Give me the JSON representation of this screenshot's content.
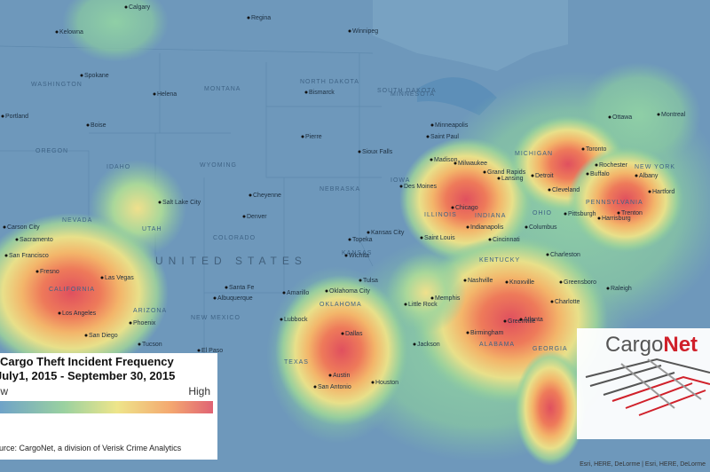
{
  "map": {
    "title": "Cargo Theft  Incident Frequency",
    "subtitle": "July1, 2015 - September 30, 2015",
    "legend": {
      "low": "Low",
      "high": "High"
    },
    "source": "Source: CargoNet, a division of Verisk Crime Analytics",
    "logo": {
      "first": "Cargo",
      "second": "Net"
    },
    "attribution": "Esri, HERE, DeLorme | Esri, HERE, DeLorme",
    "country": "UNITED STATES",
    "states": [
      "MONTANA",
      "NORTH DAKOTA",
      "SOUTH DAKOTA",
      "MINNESOTA",
      "WYOMING",
      "NEBRASKA",
      "IOWA",
      "COLORADO",
      "KANSAS",
      "UTAH",
      "NEVADA",
      "CALIFORNIA",
      "ARIZONA",
      "NEW MEXICO",
      "TEXAS",
      "OKLAHOMA",
      "ILLINOIS",
      "INDIANA",
      "OHIO",
      "MICHIGAN",
      "KENTUCKY",
      "ALABAMA",
      "GEORGIA",
      "NEW YORK",
      "PENNSYLVANIA",
      "OREGON",
      "IDAHO",
      "WASHINGTON"
    ],
    "cities": [
      "Calgary",
      "Regina",
      "Winnipeg",
      "Kelowna",
      "Spokane",
      "Portland",
      "Boise",
      "Helena",
      "Bismarck",
      "Minneapolis",
      "Saint Paul",
      "Pierre",
      "Sioux Falls",
      "Cheyenne",
      "Salt Lake City",
      "Denver",
      "Des Moines",
      "Chicago",
      "Milwaukee",
      "Madison",
      "Grand Rapids",
      "Lansing",
      "Detroit",
      "Toronto",
      "Ottawa",
      "Montreal",
      "Rochester",
      "Buffalo",
      "Cleveland",
      "Pittsburgh",
      "Indianapolis",
      "Columbus",
      "Cincinnati",
      "Saint Louis",
      "Kansas City",
      "Topeka",
      "Wichita",
      "Charleston",
      "Tulsa",
      "Nashville",
      "Knoxville",
      "Greensboro",
      "Raleigh",
      "Oklahoma City",
      "Amarillo",
      "Memphis",
      "Little Rock",
      "Charlotte",
      "Greenville",
      "Atlanta",
      "Birmingham",
      "Lubbock",
      "Dallas",
      "Jackson",
      "Austin",
      "San Antonio",
      "Houston",
      "El Paso",
      "Phoenix",
      "Tucson",
      "Albuquerque",
      "Santa Fe",
      "Los Angeles",
      "San Diego",
      "Las Vegas",
      "Fresno",
      "San Francisco",
      "Sacramento",
      "Carson City",
      "Harrisburg",
      "Trenton",
      "Albany",
      "Hartford"
    ]
  }
}
